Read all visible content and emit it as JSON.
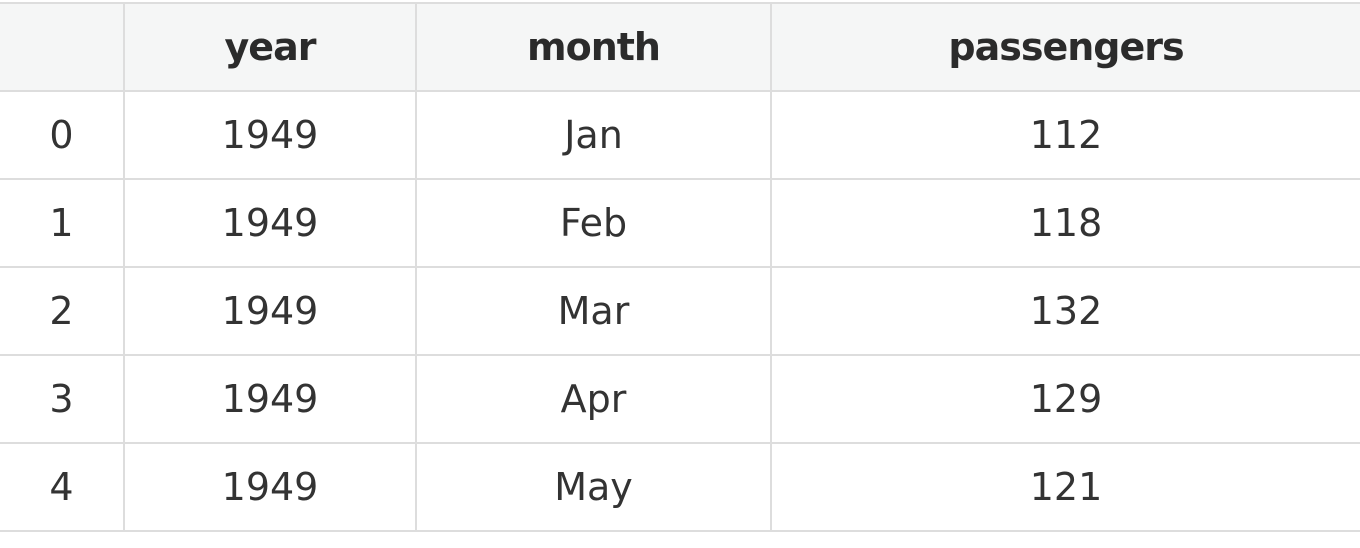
{
  "table": {
    "columns": [
      "",
      "year",
      "month",
      "passengers"
    ],
    "rows": [
      {
        "index": "0",
        "year": "1949",
        "month": "Jan",
        "passengers": "112"
      },
      {
        "index": "1",
        "year": "1949",
        "month": "Feb",
        "passengers": "118"
      },
      {
        "index": "2",
        "year": "1949",
        "month": "Mar",
        "passengers": "132"
      },
      {
        "index": "3",
        "year": "1949",
        "month": "Apr",
        "passengers": "129"
      },
      {
        "index": "4",
        "year": "1949",
        "month": "May",
        "passengers": "121"
      }
    ]
  },
  "colors": {
    "header_background": "#f5f6f6",
    "border": "#dddddd",
    "text": "#333333"
  }
}
